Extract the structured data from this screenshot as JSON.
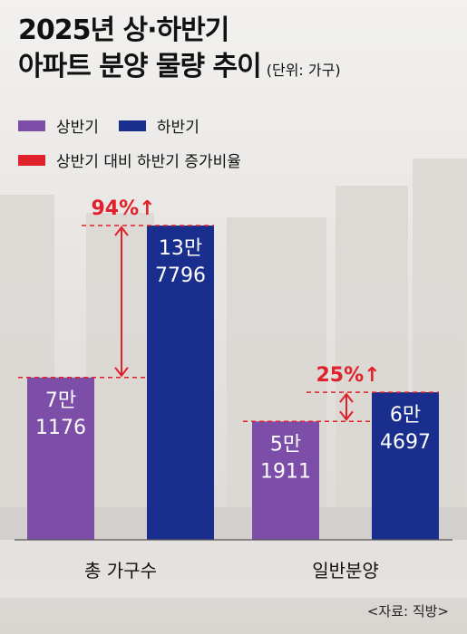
{
  "title": {
    "line1": "2025년 상·하반기",
    "line2": "아파트 분양 물량 추이",
    "unit": "(단위: 가구)"
  },
  "legend": [
    {
      "label": "상반기",
      "color": "#7d4ea8"
    },
    {
      "label": "하반기",
      "color": "#1a2e8e"
    },
    {
      "label": "상반기 대비 하반기 증가비율",
      "color": "#e0202a"
    }
  ],
  "source": "<자료: 직방>",
  "chart_data": {
    "type": "bar",
    "categories": [
      "총 가구수",
      "일반분양"
    ],
    "series": [
      {
        "name": "상반기",
        "values": [
          71176,
          51911
        ],
        "labels": [
          "7만\n1176",
          "5만\n1911"
        ],
        "color": "#7d4ea8"
      },
      {
        "name": "하반기",
        "values": [
          137796,
          64697
        ],
        "labels": [
          "13만\n7796",
          "6만\n4697"
        ],
        "color": "#1a2e8e"
      }
    ],
    "annotations": [
      {
        "category": "총 가구수",
        "text": "94%↑"
      },
      {
        "category": "일반분양",
        "text": "25%↑"
      }
    ],
    "ylim": [
      0,
      137796
    ]
  }
}
